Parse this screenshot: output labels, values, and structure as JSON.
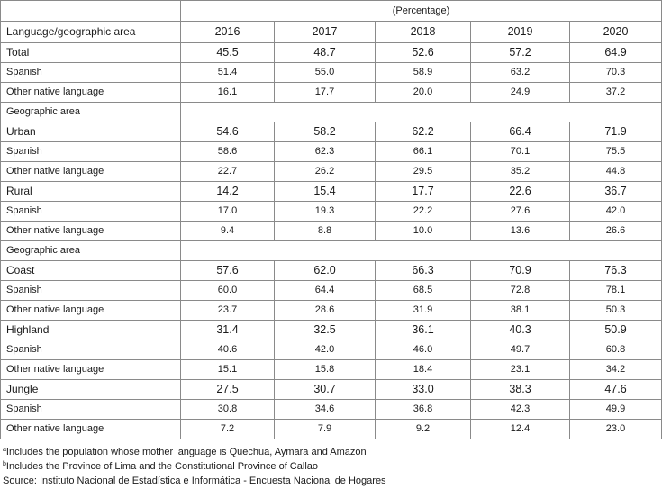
{
  "unit_label": "(Percentage)",
  "header": {
    "label": "Language/geographic area",
    "years": [
      "2016",
      "2017",
      "2018",
      "2019",
      "2020"
    ]
  },
  "rows": [
    {
      "label": "Total",
      "values": [
        "45.5",
        "48.7",
        "52.6",
        "57.2",
        "64.9"
      ],
      "style": "emph"
    },
    {
      "label": "Spanish",
      "values": [
        "51.4",
        "55.0",
        "58.9",
        "63.2",
        "70.3"
      ],
      "style": "normal"
    },
    {
      "label": "Other native language",
      "values": [
        "16.1",
        "17.7",
        "20.0",
        "24.9",
        "37.2"
      ],
      "style": "normal"
    },
    {
      "label": "Geographic area",
      "values": [],
      "style": "section"
    },
    {
      "label": "Urban",
      "values": [
        "54.6",
        "58.2",
        "62.2",
        "66.4",
        "71.9"
      ],
      "style": "emph"
    },
    {
      "label": "Spanish",
      "values": [
        "58.6",
        "62.3",
        "66.1",
        "70.1",
        "75.5"
      ],
      "style": "normal"
    },
    {
      "label": "Other native language",
      "values": [
        "22.7",
        "26.2",
        "29.5",
        "35.2",
        "44.8"
      ],
      "style": "normal"
    },
    {
      "label": "Rural",
      "values": [
        "14.2",
        "15.4",
        "17.7",
        "22.6",
        "36.7"
      ],
      "style": "emph"
    },
    {
      "label": "Spanish",
      "values": [
        "17.0",
        "19.3",
        "22.2",
        "27.6",
        "42.0"
      ],
      "style": "normal"
    },
    {
      "label": "Other native language",
      "values": [
        "9.4",
        "8.8",
        "10.0",
        "13.6",
        "26.6"
      ],
      "style": "normal"
    },
    {
      "label": "Geographic area",
      "values": [],
      "style": "section"
    },
    {
      "label": "Coast",
      "values": [
        "57.6",
        "62.0",
        "66.3",
        "70.9",
        "76.3"
      ],
      "style": "emph"
    },
    {
      "label": "Spanish",
      "values": [
        "60.0",
        "64.4",
        "68.5",
        "72.8",
        "78.1"
      ],
      "style": "normal"
    },
    {
      "label": "Other native language",
      "values": [
        "23.7",
        "28.6",
        "31.9",
        "38.1",
        "50.3"
      ],
      "style": "normal"
    },
    {
      "label": "Highland",
      "values": [
        "31.4",
        "32.5",
        "36.1",
        "40.3",
        "50.9"
      ],
      "style": "emph"
    },
    {
      "label": "Spanish",
      "values": [
        "40.6",
        "42.0",
        "46.0",
        "49.7",
        "60.8"
      ],
      "style": "normal"
    },
    {
      "label": "Other native language",
      "values": [
        "15.1",
        "15.8",
        "18.4",
        "23.1",
        "34.2"
      ],
      "style": "normal"
    },
    {
      "label": "Jungle",
      "values": [
        "27.5",
        "30.7",
        "33.0",
        "38.3",
        "47.6"
      ],
      "style": "emph"
    },
    {
      "label": "Spanish",
      "values": [
        "30.8",
        "34.6",
        "36.8",
        "42.3",
        "49.9"
      ],
      "style": "normal"
    },
    {
      "label": "Other native language",
      "values": [
        "7.2",
        "7.9",
        "9.2",
        "12.4",
        "23.0"
      ],
      "style": "normal"
    }
  ],
  "notes": [
    {
      "marker": "a",
      "text": "Includes the population whose mother language is Quechua, Aymara and Amazon"
    },
    {
      "marker": "b",
      "text": "Includes the Province of Lima and the Constitutional Province of Callao"
    },
    {
      "marker": "",
      "text": "Source: Instituto Nacional de Estadística e Informática - Encuesta Nacional de Hogares"
    }
  ]
}
